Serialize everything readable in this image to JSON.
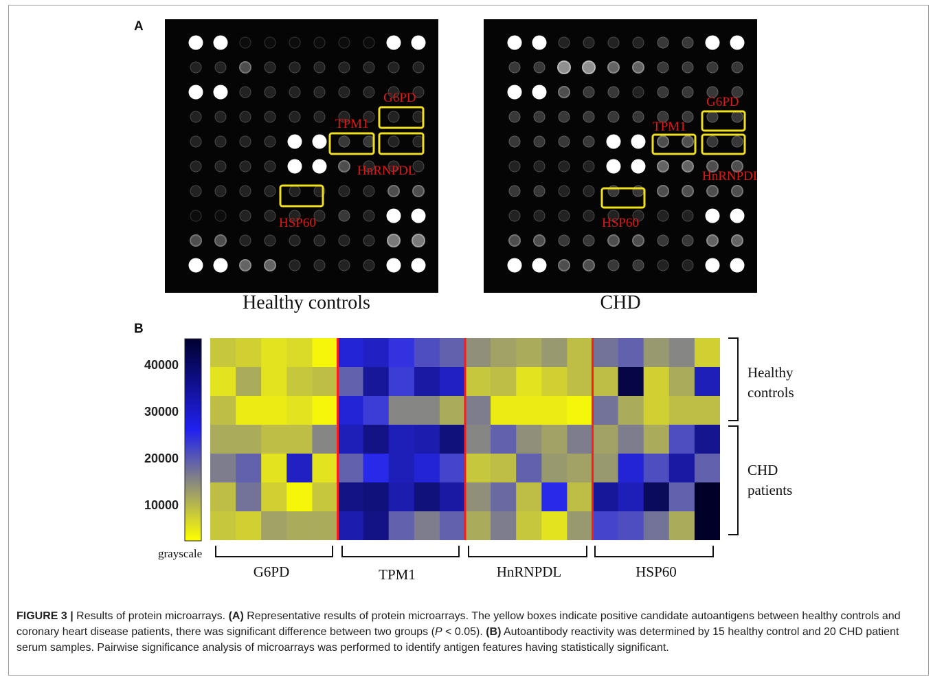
{
  "figure": {
    "panel_a_letter": "A",
    "panel_b_letter": "B",
    "arrays": [
      {
        "caption": "Healthy controls",
        "box_labels": [
          "G6PD",
          "TPM1",
          "HnRNPDL",
          "HSP60"
        ],
        "rows": [
          [
            9,
            9,
            0,
            0,
            0,
            0,
            0,
            0,
            9,
            9
          ],
          [
            1,
            1,
            3,
            1,
            1,
            1,
            1,
            1,
            1,
            1
          ],
          [
            9,
            9,
            1,
            1,
            1,
            1,
            1,
            1,
            1,
            1
          ],
          [
            1,
            1,
            1,
            1,
            1,
            1,
            1,
            1,
            1,
            1
          ],
          [
            1,
            1,
            1,
            1,
            9,
            9,
            2,
            2,
            1,
            1
          ],
          [
            1,
            1,
            1,
            1,
            9,
            9,
            3,
            1,
            1,
            1
          ],
          [
            1,
            1,
            1,
            1,
            1,
            1,
            1,
            1,
            3,
            3
          ],
          [
            0,
            0,
            1,
            1,
            1,
            1,
            2,
            1,
            9,
            9
          ],
          [
            3,
            3,
            1,
            1,
            1,
            1,
            1,
            1,
            5,
            5
          ],
          [
            9,
            9,
            4,
            4,
            1,
            1,
            1,
            1,
            9,
            9
          ]
        ]
      },
      {
        "caption": "CHD",
        "box_labels": [
          "G6PD",
          "TPM1",
          "HnRNPDL",
          "HSP60"
        ],
        "rows": [
          [
            9,
            9,
            1,
            1,
            1,
            1,
            2,
            2,
            9,
            9
          ],
          [
            2,
            2,
            6,
            6,
            4,
            4,
            2,
            2,
            2,
            2
          ],
          [
            9,
            9,
            3,
            2,
            2,
            1,
            2,
            2,
            2,
            2
          ],
          [
            2,
            2,
            2,
            2,
            2,
            2,
            2,
            2,
            2,
            2
          ],
          [
            2,
            2,
            2,
            2,
            9,
            9,
            3,
            3,
            2,
            2
          ],
          [
            1,
            1,
            1,
            1,
            9,
            9,
            4,
            4,
            3,
            3
          ],
          [
            2,
            2,
            1,
            1,
            2,
            2,
            3,
            3,
            3,
            3
          ],
          [
            1,
            1,
            1,
            1,
            1,
            1,
            1,
            1,
            9,
            9
          ],
          [
            3,
            3,
            2,
            2,
            3,
            3,
            2,
            2,
            4,
            4
          ],
          [
            9,
            9,
            3,
            3,
            2,
            2,
            1,
            1,
            9,
            9
          ]
        ]
      }
    ],
    "colorbar": {
      "ticks": [
        "40000",
        "30000",
        "20000",
        "10000"
      ],
      "label": "grayscale",
      "stops": [
        "#ffff00",
        "#2020f0",
        "#000030"
      ]
    },
    "group_labels": [
      "G6PD",
      "TPM1",
      "HnRNPDL",
      "HSP60"
    ],
    "row_group_labels": [
      {
        "line1": "Healthy",
        "line2": "controls"
      },
      {
        "line1": "CHD",
        "line2": "patients"
      }
    ],
    "caption": {
      "figure_label": "FIGURE 3 |",
      "intro": " Results of protein microarrays. ",
      "a_label": "(A)",
      "a_text": " Representative results of protein microarrays. The yellow boxes indicate positive candidate autoantigens between healthy controls and coronary heart disease patients, there was significant difference between two groups (",
      "p_symbol": "P",
      "p_text": " < 0.05). ",
      "b_label": "(B)",
      "b_text": " Autoantibody reactivity was determined by 15 healthy control and 20 CHD patient serum samples. Pairwise significance analysis of microarrays was performed to identify antigen features having statistically significant."
    }
  },
  "chart_data": {
    "type": "heatmap",
    "title": "",
    "xlabel": "",
    "ylabel": "grayscale",
    "categories": [
      "G6PD",
      "TPM1",
      "HnRNPDL",
      "HSP60"
    ],
    "row_groups": [
      {
        "name": "Healthy controls",
        "rows": [
          0,
          1,
          2
        ]
      },
      {
        "name": "CHD patients",
        "rows": [
          3,
          4,
          5,
          6
        ]
      }
    ],
    "colorbar_ticks": [
      40000,
      30000,
      20000,
      10000
    ],
    "colorbar_range": [
      3000,
      45000
    ],
    "values": [
      [
        9000,
        8000,
        6000,
        7000,
        4000,
        28000,
        30000,
        25000,
        22000,
        20000,
        15000,
        13000,
        12000,
        14000,
        10000,
        18000,
        20000,
        14000,
        16000,
        8000
      ],
      [
        6000,
        12000,
        6000,
        9000,
        10000,
        20000,
        34000,
        24000,
        33000,
        30000,
        9000,
        10000,
        6000,
        8000,
        10000,
        10000,
        42000,
        8000,
        12000,
        31000
      ],
      [
        10000,
        5000,
        5000,
        6000,
        4000,
        28000,
        24000,
        16000,
        16000,
        12000,
        17000,
        5000,
        5000,
        5000,
        4000,
        18000,
        12000,
        8000,
        10000,
        10000
      ],
      [
        12000,
        12000,
        10000,
        10000,
        16000,
        31000,
        36000,
        31000,
        32000,
        37000,
        16000,
        20000,
        15000,
        13000,
        17000,
        13000,
        17000,
        12000,
        22000,
        35000
      ],
      [
        17000,
        20000,
        6000,
        30000,
        6000,
        20000,
        26000,
        31000,
        28000,
        23000,
        9000,
        10000,
        20000,
        14000,
        13000,
        14000,
        28000,
        22000,
        33000,
        20000
      ],
      [
        10000,
        18000,
        8000,
        4000,
        9000,
        36000,
        37000,
        32000,
        37000,
        33000,
        15000,
        19000,
        10000,
        26000,
        10000,
        34000,
        31000,
        40000,
        20000,
        45000
      ],
      [
        9000,
        8000,
        13000,
        12000,
        12000,
        32000,
        36000,
        20000,
        17000,
        20000,
        12000,
        17000,
        9000,
        6000,
        14000,
        23000,
        22000,
        18000,
        12000,
        50000
      ]
    ]
  }
}
